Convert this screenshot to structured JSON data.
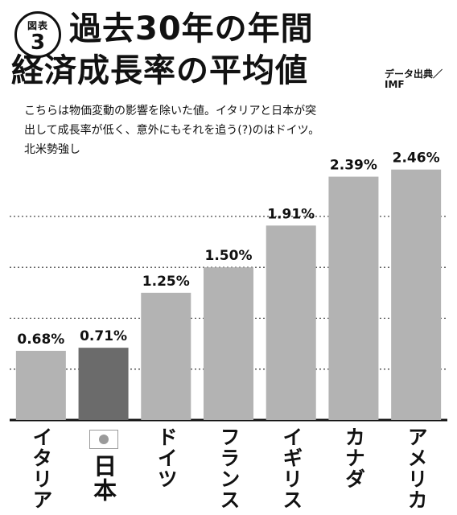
{
  "header": {
    "badge_label": "図表",
    "badge_number": "3",
    "title_line1": "過去30年の年間",
    "title_line2": "経済成長率の平均値",
    "source_line1": "データ出典／",
    "source_line2": "IMF",
    "description": "こちらは物価変動の影響を除いた値。イタリアと日本が突出して成長率が低く、意外にもそれを追う(?)のはドイツ。北米勢強し"
  },
  "colors": {
    "bar": "#b3b3b3",
    "bar_highlight": "#6b6b6b",
    "text": "#111111",
    "gridline": "#333333"
  },
  "chart_data": {
    "type": "bar",
    "categories": [
      "イタリア",
      "日本",
      "ドイツ",
      "フランス",
      "イギリス",
      "カナダ",
      "アメリカ"
    ],
    "values": [
      0.68,
      0.71,
      1.25,
      1.5,
      1.91,
      2.39,
      2.46
    ],
    "value_labels": [
      "0.68%",
      "0.71%",
      "1.25%",
      "1.50%",
      "1.91%",
      "2.39%",
      "2.46%"
    ],
    "highlight_category": "日本",
    "ylim": [
      0,
      2.6
    ],
    "grid": true,
    "gridline_values": [
      0.5,
      1.0,
      1.5,
      2.0
    ]
  }
}
